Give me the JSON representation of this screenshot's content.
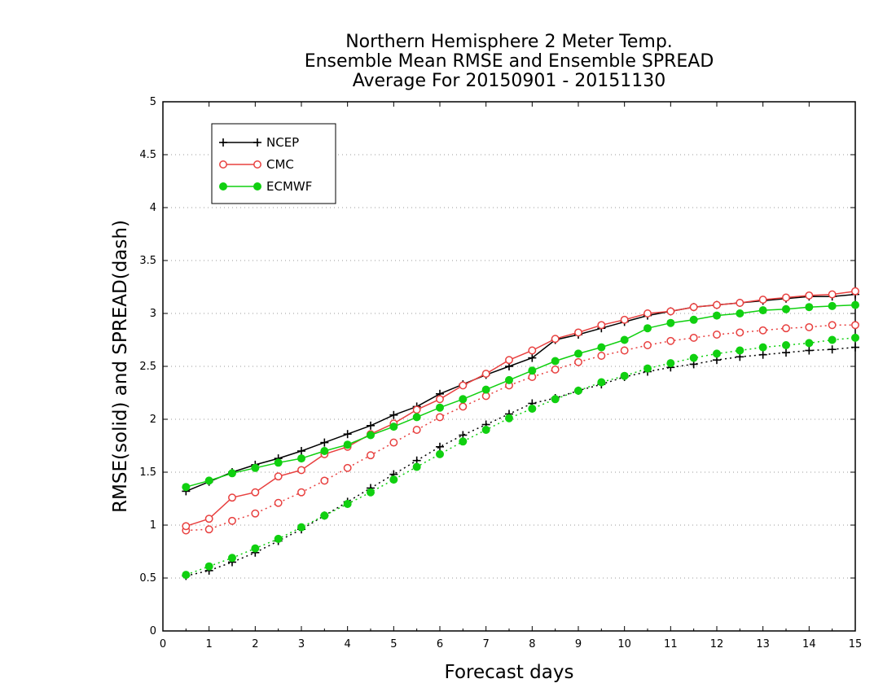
{
  "chart_data": {
    "type": "line",
    "title_lines": [
      "Northern Hemisphere 2 Meter Temp.",
      "Ensemble Mean RMSE and Ensemble SPREAD",
      "Average For 20150901 - 20151130"
    ],
    "xlabel": "Forecast days",
    "ylabel": "RMSE(solid) and SPREAD(dash)",
    "xlim": [
      0,
      15
    ],
    "ylim": [
      0,
      5
    ],
    "xticks": [
      0,
      1,
      2,
      3,
      4,
      5,
      6,
      7,
      8,
      9,
      10,
      11,
      12,
      13,
      14,
      15
    ],
    "yticks": [
      0,
      0.5,
      1,
      1.5,
      2,
      2.5,
      3,
      3.5,
      4,
      4.5,
      5
    ],
    "ytick_labels": [
      "0",
      "0.5",
      "1",
      "1.5",
      "2",
      "2.5",
      "3",
      "3.5",
      "4",
      "4.5",
      "5"
    ],
    "grid": "horizontal-dotted",
    "legend_position": "top-left",
    "x": [
      0.5,
      1,
      1.5,
      2,
      2.5,
      3,
      3.5,
      4,
      4.5,
      5,
      5.5,
      6,
      6.5,
      7,
      7.5,
      8,
      8.5,
      9,
      9.5,
      10,
      10.5,
      11,
      11.5,
      12,
      12.5,
      13,
      13.5,
      14,
      14.5,
      15
    ],
    "series": [
      {
        "name": "NCEP",
        "color": "#000000",
        "marker": "plus",
        "rmse": [
          1.32,
          1.41,
          1.5,
          1.57,
          1.63,
          1.7,
          1.78,
          1.86,
          1.94,
          2.04,
          2.12,
          2.24,
          2.33,
          2.42,
          2.5,
          2.58,
          2.75,
          2.8,
          2.86,
          2.92,
          2.98,
          3.02,
          3.06,
          3.08,
          3.1,
          3.12,
          3.14,
          3.16,
          3.16,
          3.18
        ],
        "spread": [
          0.52,
          0.57,
          0.65,
          0.74,
          0.85,
          0.96,
          1.09,
          1.22,
          1.35,
          1.48,
          1.61,
          1.74,
          1.85,
          1.95,
          2.05,
          2.15,
          2.2,
          2.27,
          2.33,
          2.4,
          2.45,
          2.49,
          2.52,
          2.56,
          2.59,
          2.61,
          2.63,
          2.65,
          2.66,
          2.68
        ]
      },
      {
        "name": "CMC",
        "color": "#e8403f",
        "marker": "open-circle",
        "rmse": [
          0.99,
          1.06,
          1.26,
          1.31,
          1.46,
          1.52,
          1.67,
          1.74,
          1.86,
          1.96,
          2.09,
          2.19,
          2.32,
          2.43,
          2.56,
          2.65,
          2.76,
          2.82,
          2.89,
          2.94,
          3.0,
          3.02,
          3.06,
          3.08,
          3.1,
          3.13,
          3.15,
          3.17,
          3.18,
          3.21
        ],
        "spread": [
          0.95,
          0.96,
          1.04,
          1.11,
          1.21,
          1.31,
          1.42,
          1.54,
          1.66,
          1.78,
          1.9,
          2.02,
          2.12,
          2.22,
          2.32,
          2.4,
          2.47,
          2.54,
          2.6,
          2.65,
          2.7,
          2.74,
          2.77,
          2.8,
          2.82,
          2.84,
          2.86,
          2.87,
          2.89,
          2.89
        ]
      },
      {
        "name": "ECMWF",
        "color": "#10d010",
        "marker": "filled-circle",
        "rmse": [
          1.36,
          1.42,
          1.49,
          1.54,
          1.59,
          1.63,
          1.7,
          1.76,
          1.85,
          1.93,
          2.02,
          2.11,
          2.19,
          2.28,
          2.37,
          2.46,
          2.55,
          2.62,
          2.68,
          2.75,
          2.86,
          2.91,
          2.94,
          2.98,
          3.0,
          3.03,
          3.04,
          3.06,
          3.07,
          3.08
        ],
        "spread": [
          0.53,
          0.61,
          0.69,
          0.78,
          0.87,
          0.98,
          1.09,
          1.2,
          1.31,
          1.43,
          1.55,
          1.67,
          1.79,
          1.9,
          2.01,
          2.1,
          2.19,
          2.27,
          2.35,
          2.41,
          2.48,
          2.53,
          2.58,
          2.62,
          2.65,
          2.68,
          2.7,
          2.72,
          2.75,
          2.77
        ]
      }
    ]
  }
}
